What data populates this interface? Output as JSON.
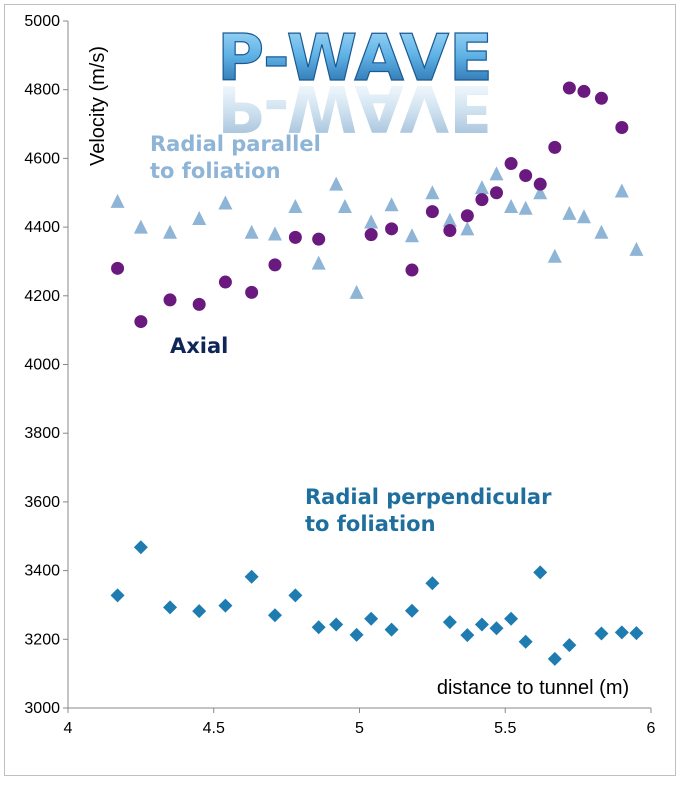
{
  "chart_data": {
    "type": "scatter",
    "title": "P-WAVE",
    "xlabel": "distance to tunnel (m)",
    "ylabel": "Velocity (m/s)",
    "xlim": [
      4,
      6
    ],
    "ylim": [
      3000,
      5000
    ],
    "x_ticks": [
      "4",
      "4.5",
      "5",
      "5.5",
      "6"
    ],
    "y_ticks": [
      "3000",
      "3200",
      "3400",
      "3600",
      "3800",
      "4000",
      "4200",
      "4400",
      "4600",
      "4800",
      "5000"
    ],
    "grid": false,
    "series": [
      {
        "name": "Radial parallel to foliation",
        "label_lines": [
          "Radial parallel",
          "to foliation"
        ],
        "marker": "triangle",
        "color": "#8eb4d6",
        "points": [
          [
            4.17,
            4475
          ],
          [
            4.25,
            4400
          ],
          [
            4.35,
            4385
          ],
          [
            4.45,
            4425
          ],
          [
            4.54,
            4470
          ],
          [
            4.63,
            4385
          ],
          [
            4.71,
            4380
          ],
          [
            4.78,
            4460
          ],
          [
            4.86,
            4295
          ],
          [
            4.92,
            4525
          ],
          [
            4.95,
            4460
          ],
          [
            4.99,
            4210
          ],
          [
            5.04,
            4415
          ],
          [
            5.11,
            4465
          ],
          [
            5.18,
            4375
          ],
          [
            5.25,
            4500
          ],
          [
            5.31,
            4420
          ],
          [
            5.37,
            4395
          ],
          [
            5.42,
            4515
          ],
          [
            5.47,
            4555
          ],
          [
            5.52,
            4460
          ],
          [
            5.57,
            4455
          ],
          [
            5.62,
            4500
          ],
          [
            5.67,
            4315
          ],
          [
            5.72,
            4440
          ],
          [
            5.77,
            4430
          ],
          [
            5.83,
            4385
          ],
          [
            5.9,
            4505
          ],
          [
            5.95,
            4335
          ]
        ]
      },
      {
        "name": "Axial",
        "label_lines": [
          "Axial"
        ],
        "marker": "circle",
        "color": "#6a1a7e",
        "points": [
          [
            4.17,
            4280
          ],
          [
            4.25,
            4125
          ],
          [
            4.35,
            4188
          ],
          [
            4.45,
            4175
          ],
          [
            4.54,
            4240
          ],
          [
            4.63,
            4210
          ],
          [
            4.71,
            4290
          ],
          [
            4.78,
            4370
          ],
          [
            4.86,
            4365
          ],
          [
            5.04,
            4378
          ],
          [
            5.11,
            4395
          ],
          [
            5.18,
            4275
          ],
          [
            5.25,
            4445
          ],
          [
            5.31,
            4390
          ],
          [
            5.37,
            4433
          ],
          [
            5.42,
            4480
          ],
          [
            5.47,
            4500
          ],
          [
            5.52,
            4585
          ],
          [
            5.57,
            4550
          ],
          [
            5.62,
            4525
          ],
          [
            5.67,
            4632
          ],
          [
            5.72,
            4805
          ],
          [
            5.77,
            4795
          ],
          [
            5.83,
            4775
          ],
          [
            5.9,
            4690
          ]
        ]
      },
      {
        "name": "Radial perpendicular to foliation",
        "label_lines": [
          "Radial perpendicular",
          "to foliation"
        ],
        "marker": "diamond",
        "color": "#1f7cb0",
        "points": [
          [
            4.17,
            3328
          ],
          [
            4.25,
            3468
          ],
          [
            4.35,
            3293
          ],
          [
            4.45,
            3282
          ],
          [
            4.54,
            3298
          ],
          [
            4.63,
            3382
          ],
          [
            4.71,
            3270
          ],
          [
            4.78,
            3328
          ],
          [
            4.86,
            3235
          ],
          [
            4.92,
            3243
          ],
          [
            4.99,
            3213
          ],
          [
            5.04,
            3260
          ],
          [
            5.11,
            3228
          ],
          [
            5.18,
            3283
          ],
          [
            5.25,
            3363
          ],
          [
            5.31,
            3250
          ],
          [
            5.37,
            3212
          ],
          [
            5.42,
            3243
          ],
          [
            5.47,
            3232
          ],
          [
            5.52,
            3260
          ],
          [
            5.57,
            3193
          ],
          [
            5.62,
            3395
          ],
          [
            5.67,
            3143
          ],
          [
            5.72,
            3183
          ],
          [
            5.83,
            3217
          ],
          [
            5.9,
            3220
          ],
          [
            5.95,
            3218
          ]
        ]
      }
    ]
  },
  "colors": {
    "title_light": "#7fc6ef",
    "title_dark": "#1f6aa8",
    "label_parallel": "#8eb4d6",
    "label_axial": "#0f2658",
    "label_perpendicular": "#1f6f9e"
  }
}
